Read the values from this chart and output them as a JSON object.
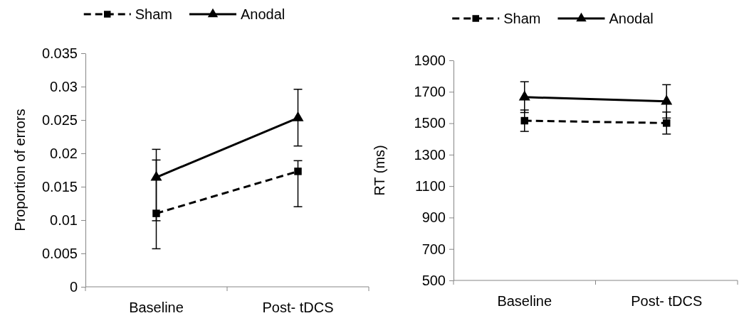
{
  "chart_data": [
    {
      "type": "line",
      "ylabel": "Proportion of errors",
      "categories": [
        "Baseline",
        "Post- tDCS"
      ],
      "ylim": [
        0,
        0.035
      ],
      "yticks": [
        0,
        0.005,
        0.01,
        0.015,
        0.02,
        0.025,
        0.03,
        0.035
      ],
      "legend": "top",
      "grid": false,
      "series": [
        {
          "name": "Sham",
          "color": "#000000",
          "values": [
            0.011,
            0.0173
          ],
          "errors": [
            [
              0.0057,
              0.019
            ],
            [
              0.012,
              0.0189
            ]
          ],
          "marker": "square",
          "line_style": "dashed"
        },
        {
          "name": "Anodal",
          "color": "#000000",
          "values": [
            0.0164,
            0.0253
          ],
          "errors": [
            [
              0.0099,
              0.0206
            ],
            [
              0.0211,
              0.0296
            ]
          ],
          "marker": "triangle",
          "line_style": "solid"
        }
      ]
    },
    {
      "type": "line",
      "ylabel": "RT (ms)",
      "categories": [
        "Baseline",
        "Post- tDCS"
      ],
      "ylim": [
        500,
        1900
      ],
      "yticks": [
        500,
        700,
        900,
        1100,
        1300,
        1500,
        1700,
        1900
      ],
      "legend": "top",
      "grid": false,
      "series": [
        {
          "name": "Sham",
          "color": "#000000",
          "values": [
            1516,
            1501
          ],
          "errors": [
            68,
            70
          ],
          "marker": "square",
          "line_style": "dashed"
        },
        {
          "name": "Anodal",
          "color": "#000000",
          "values": [
            1666,
            1639
          ],
          "errors": [
            98,
            106
          ],
          "marker": "triangle",
          "line_style": "solid"
        }
      ]
    }
  ]
}
